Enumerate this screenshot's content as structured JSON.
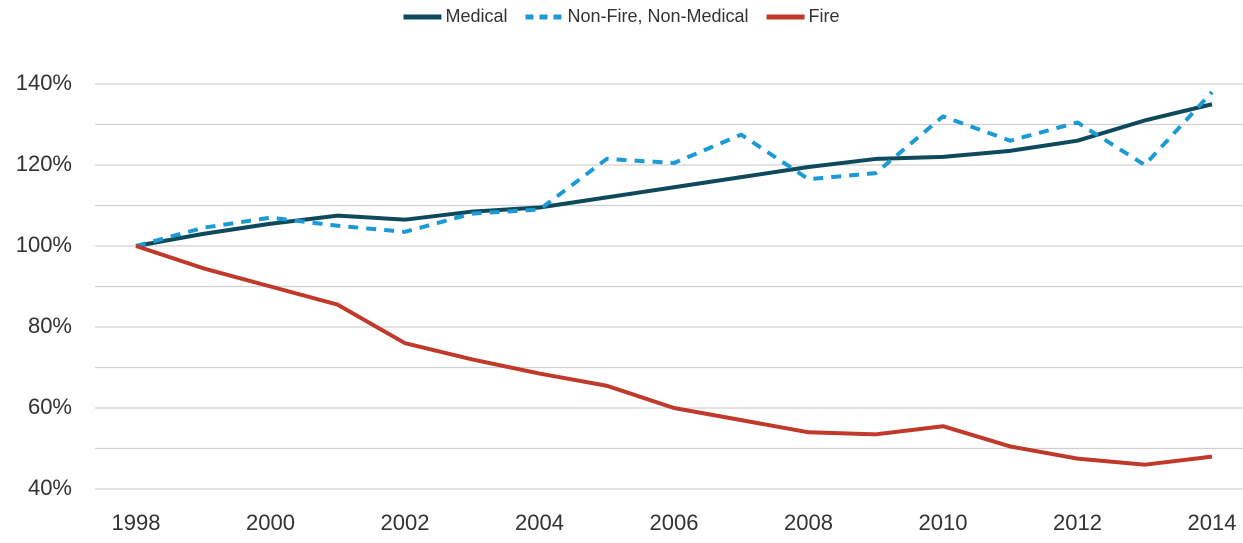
{
  "chart_data": {
    "type": "line",
    "x": [
      1998,
      1999,
      2000,
      2001,
      2002,
      2003,
      2004,
      2005,
      2006,
      2007,
      2008,
      2009,
      2010,
      2011,
      2012,
      2013,
      2014
    ],
    "series": [
      {
        "name": "Medical",
        "color": "#0e4a5c",
        "dash": "solid",
        "values": [
          100,
          103,
          105.5,
          107.5,
          106.5,
          108.5,
          109.5,
          112,
          114.5,
          117,
          119.5,
          121.5,
          122,
          123.5,
          126,
          131,
          135
        ]
      },
      {
        "name": "Non-Fire, Non-Medical",
        "color": "#1b9ad6",
        "dash": "dashed",
        "values": [
          100,
          104.5,
          107,
          105,
          103.5,
          108,
          109,
          121.5,
          120.5,
          127.5,
          116.5,
          118,
          132,
          126,
          130.5,
          120,
          138
        ]
      },
      {
        "name": "Fire",
        "color": "#c0392b",
        "dash": "solid",
        "values": [
          100,
          94.5,
          90,
          85.5,
          76,
          72,
          68.5,
          65.5,
          60,
          57,
          54,
          53.5,
          55.5,
          50.5,
          47.5,
          46,
          48
        ]
      }
    ],
    "xlim": [
      1998,
      2014
    ],
    "xticks": [
      1998,
      2000,
      2002,
      2004,
      2006,
      2008,
      2010,
      2012,
      2014
    ],
    "ylim": [
      40,
      140
    ],
    "yticks": [
      {
        "value": 40,
        "label": "40%"
      },
      {
        "value": 60,
        "label": "60%"
      },
      {
        "value": 80,
        "label": "80%"
      },
      {
        "value": 100,
        "label": "100%"
      },
      {
        "value": 120,
        "label": "120%"
      },
      {
        "value": 140,
        "label": "140%"
      }
    ],
    "ygrid": [
      40,
      50,
      60,
      70,
      80,
      90,
      100,
      110,
      120,
      130,
      140
    ],
    "grid": true,
    "legend": "top"
  }
}
